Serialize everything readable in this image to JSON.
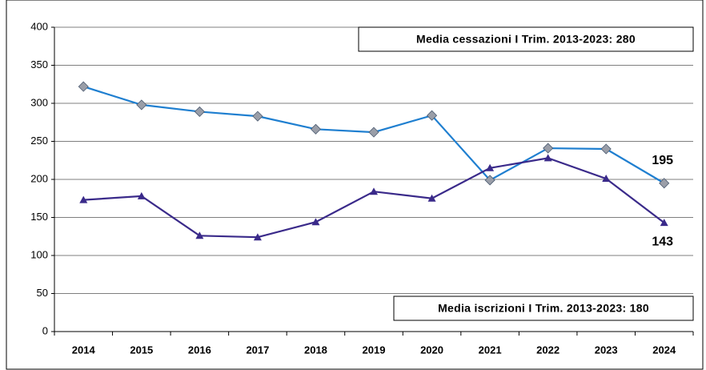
{
  "chart_data": {
    "type": "line",
    "categories": [
      "2014",
      "2015",
      "2016",
      "2017",
      "2018",
      "2019",
      "2020",
      "2021",
      "2022",
      "2023",
      "2024"
    ],
    "series": [
      {
        "color": "#1f7fd0",
        "marker": "diamond",
        "marker_color": "#9a9ea8",
        "values": [
          322,
          298,
          289,
          283,
          266,
          262,
          284,
          199,
          241,
          240,
          195
        ]
      },
      {
        "color": "#3a2a8a",
        "marker": "triangle",
        "marker_color": "#3a2a8a",
        "values": [
          173,
          178,
          126,
          124,
          144,
          184,
          175,
          215,
          228,
          201,
          143
        ]
      }
    ],
    "ylim": [
      0,
      400
    ],
    "yticks": [
      0,
      50,
      100,
      150,
      200,
      250,
      300,
      350,
      400
    ],
    "grid": true,
    "annotations": [
      {
        "text": "Media cessazioni I Trim. 2013-2023: 280",
        "color": "#1f7fd0"
      },
      {
        "text": "Media iscrizioni I Trim. 2013-2023: 180",
        "color": "#1f1a6e"
      }
    ]
  }
}
